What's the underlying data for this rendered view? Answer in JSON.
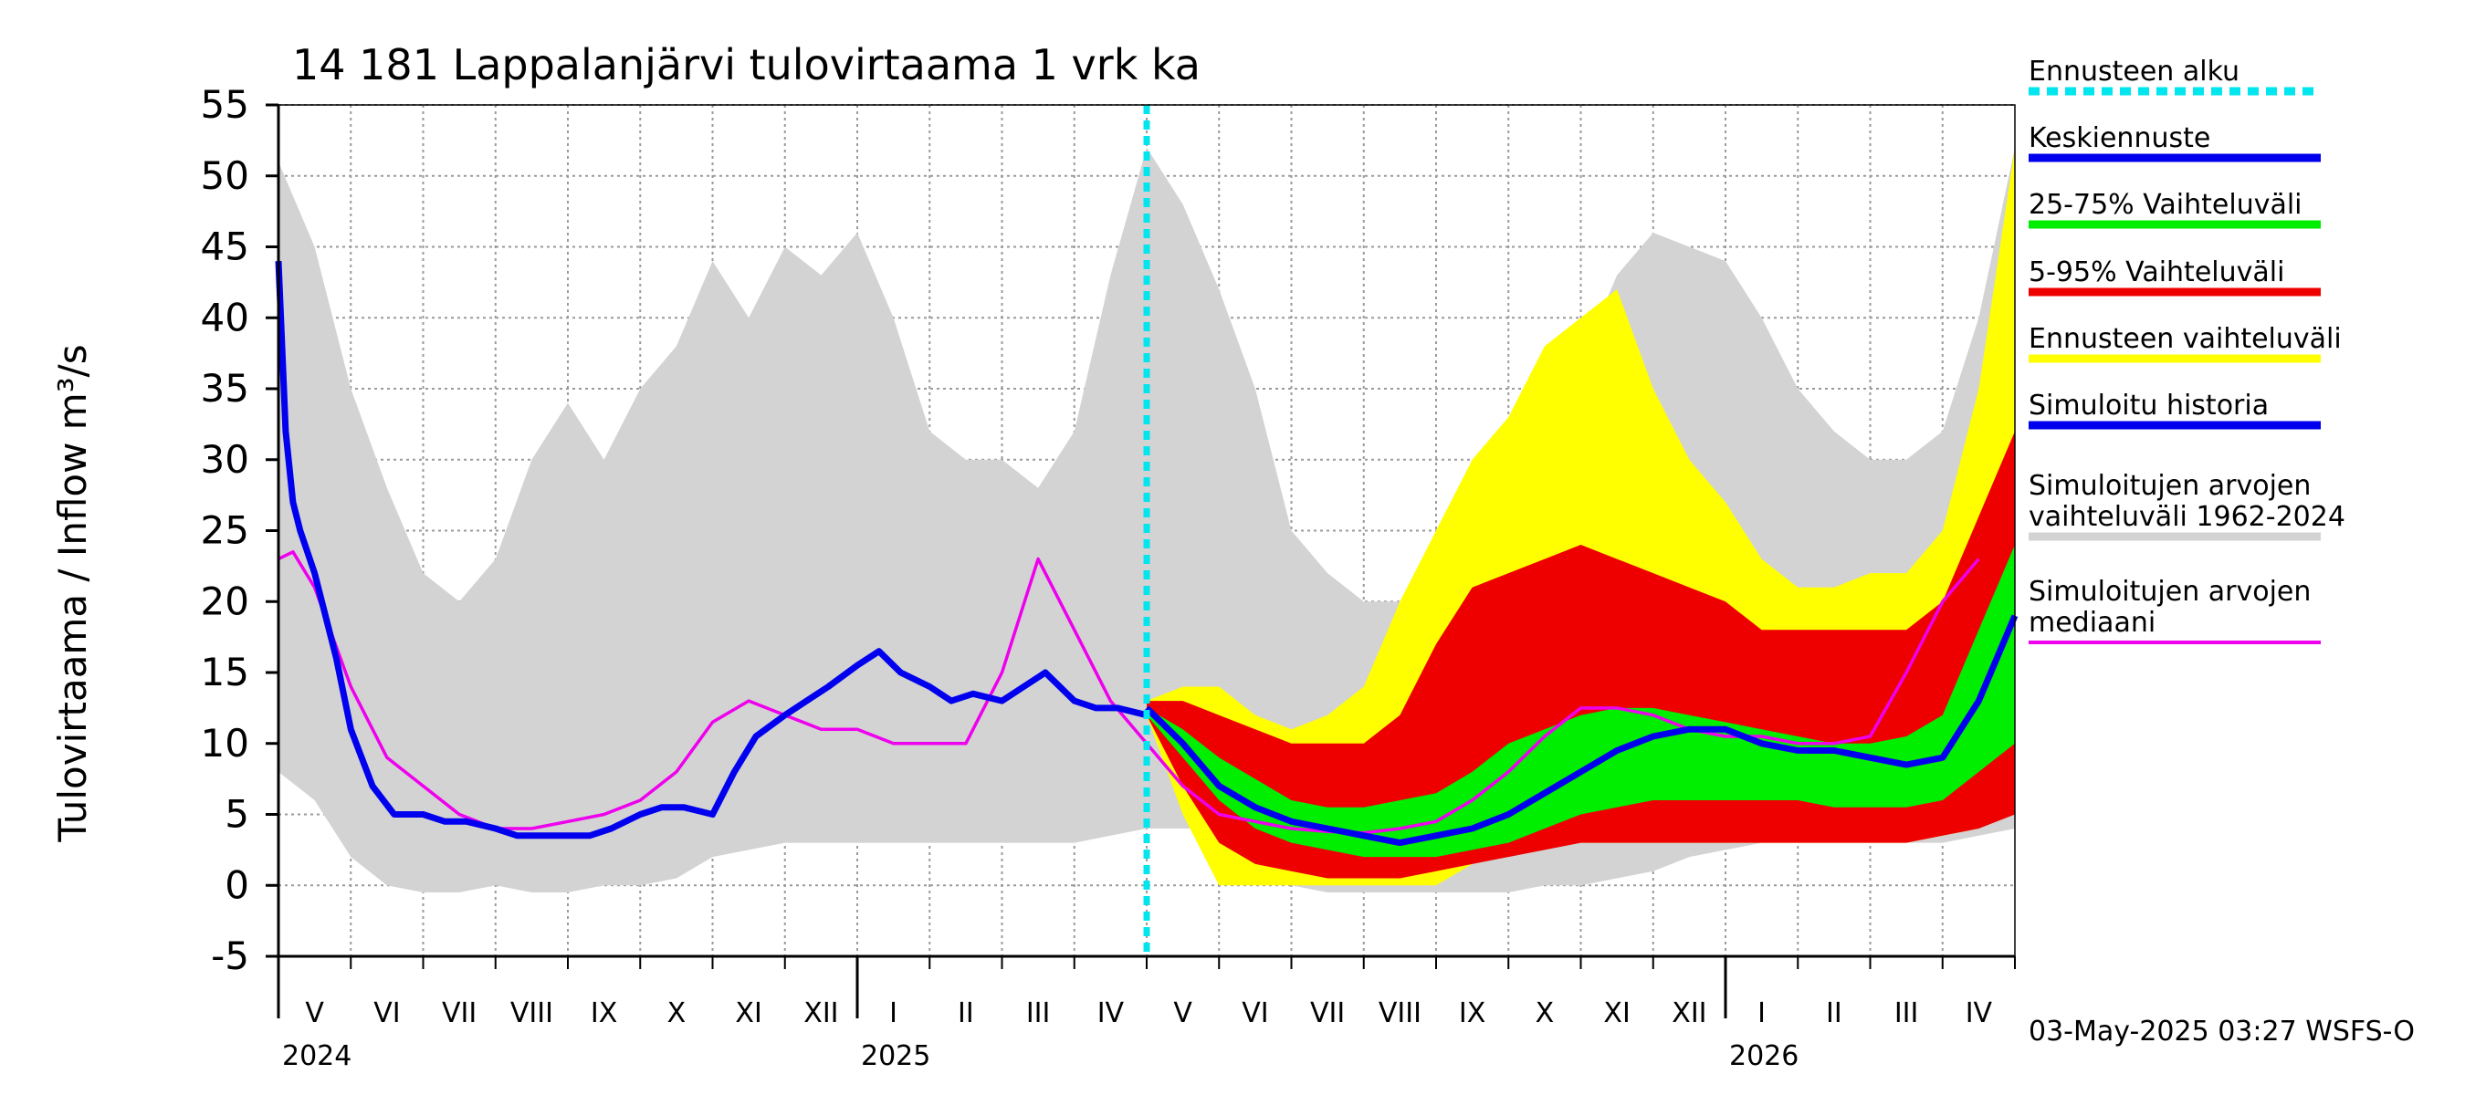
{
  "chart_data": {
    "type": "area",
    "title": "14 181 Lappalanjärvi tulovirtaama 1 vrk ka",
    "ylabel": "Tulovirtaama / Inflow    m³/s",
    "ylim": [
      -5,
      55
    ],
    "yticks": [
      -5,
      0,
      5,
      10,
      15,
      20,
      25,
      30,
      35,
      40,
      45,
      50,
      55
    ],
    "grid": true,
    "forecast_start": "2025-05-03",
    "month_labels": [
      "V",
      "VI",
      "VII",
      "VIII",
      "IX",
      "X",
      "XI",
      "XII",
      "I",
      "II",
      "III",
      "IV",
      "V",
      "VI",
      "VII",
      "VIII",
      "IX",
      "X",
      "XI",
      "XII",
      "I",
      "II",
      "III",
      "IV"
    ],
    "year_labels": [
      "2024",
      "2025",
      "2026"
    ],
    "legend": [
      {
        "label": "Ennusteen alku",
        "color": "#00e5ee",
        "style": "dashed"
      },
      {
        "label": "Keskiennuste",
        "color": "#0000ee",
        "style": "solid"
      },
      {
        "label": "25-75% Vaihteluväli",
        "color": "#00ee00",
        "style": "solid"
      },
      {
        "label": "5-95% Vaihteluväli",
        "color": "#ee0000",
        "style": "solid"
      },
      {
        "label": "Ennusteen vaihteluväli",
        "color": "#ffff00",
        "style": "solid"
      },
      {
        "label": "Simuloitu historia",
        "color": "#0000ee",
        "style": "solid"
      },
      {
        "label": "Simuloitujen arvojen",
        "label2": "vaihteluväli 1962-2024",
        "color": "#d3d3d3",
        "style": "solid"
      },
      {
        "label": "Simuloitujen arvojen",
        "label2": "mediaani",
        "color": "#ee00ee",
        "style": "solid"
      }
    ],
    "footer": "03-May-2025 03:27 WSFS-O",
    "series": {
      "hist_range_x": [
        0,
        0.5,
        1,
        1.5,
        2,
        2.5,
        3,
        3.5,
        4,
        4.5,
        5,
        5.5,
        6,
        6.5,
        7,
        7.5,
        8,
        8.5,
        9,
        9.5,
        10,
        10.5,
        11,
        11.5,
        12,
        12.5,
        13,
        13.5,
        14,
        14.5,
        15,
        15.5,
        16,
        16.5,
        17,
        17.5,
        18,
        18.5,
        19,
        19.5,
        20,
        20.5,
        21,
        21.5,
        22,
        22.5,
        23,
        23.5,
        24
      ],
      "hist_range_lo": [
        8,
        6,
        2,
        0,
        -0.5,
        -0.5,
        0,
        -0.5,
        -0.5,
        0,
        0,
        0.5,
        2,
        2.5,
        3,
        3,
        3,
        3,
        3,
        3,
        3,
        3,
        3,
        3.5,
        4,
        4,
        4,
        3,
        0,
        -0.5,
        -0.5,
        -0.5,
        -0.5,
        -0.5,
        -0.5,
        0,
        0,
        0.5,
        1,
        2,
        2.5,
        3,
        3,
        3,
        3,
        3,
        3,
        3.5,
        4
      ],
      "hist_range_hi": [
        51,
        45,
        35,
        28,
        22,
        20,
        23,
        30,
        34,
        30,
        35,
        38,
        44,
        40,
        45,
        43,
        46,
        40,
        32,
        30,
        30,
        28,
        32,
        43,
        52,
        48,
        42,
        35,
        25,
        22,
        20,
        20,
        22,
        23,
        28,
        32,
        37,
        43,
        46,
        45,
        44,
        40,
        35,
        32,
        30,
        30,
        32,
        40,
        52
      ],
      "median_x": [
        0,
        0.2,
        0.5,
        1,
        1.5,
        2,
        2.5,
        3,
        3.5,
        4,
        4.5,
        5,
        5.5,
        6,
        6.5,
        7,
        7.5,
        8,
        8.5,
        9,
        9.5,
        10,
        10.5,
        11,
        11.5,
        12,
        12.5,
        13,
        13.5,
        14,
        14.5,
        15,
        15.5,
        16,
        16.5,
        17,
        17.5,
        18,
        18.5,
        19,
        19.5,
        20,
        20.5,
        21,
        21.5,
        22,
        22.5,
        23,
        23.5,
        24
      ],
      "median_y": [
        23,
        23.5,
        21,
        14,
        9,
        7,
        5,
        4,
        4,
        4.5,
        5,
        6,
        8,
        11.5,
        13,
        12,
        11,
        11,
        10,
        10,
        10,
        15,
        23,
        18,
        13,
        10,
        7,
        5,
        4.5,
        4,
        3.8,
        3.7,
        4,
        4.5,
        6,
        8,
        10.5,
        12.5,
        12.5,
        12,
        11,
        10.5,
        10.5,
        10,
        10,
        10.5,
        15,
        20,
        23
      ],
      "sim_x": [
        0,
        0.1,
        0.2,
        0.3,
        0.5,
        0.8,
        1,
        1.3,
        1.6,
        2,
        2.3,
        2.6,
        3,
        3.3,
        3.6,
        4,
        4.3,
        4.6,
        5,
        5.3,
        5.6,
        6,
        6.3,
        6.6,
        7,
        7.3,
        7.6,
        8,
        8.3,
        8.6,
        9,
        9.3,
        9.6,
        10,
        10.3,
        10.6,
        11,
        11.3,
        11.6,
        12
      ],
      "sim_y": [
        44,
        32,
        27,
        25,
        22,
        16,
        11,
        7,
        5,
        5,
        4.5,
        4.5,
        4,
        3.5,
        3.5,
        3.5,
        3.5,
        4,
        5,
        5.5,
        5.5,
        5,
        8,
        10.5,
        12,
        13,
        14,
        15.5,
        16.5,
        15,
        14,
        13,
        13.5,
        13,
        14,
        15,
        13,
        12.5,
        12.5,
        12
      ],
      "fc_x": [
        12,
        12.5,
        13,
        13.5,
        14,
        14.5,
        15,
        15.5,
        16,
        16.5,
        17,
        17.5,
        18,
        18.5,
        19,
        19.5,
        20,
        20.5,
        21,
        21.5,
        22,
        22.5,
        23,
        23.5,
        24
      ],
      "fc_yellow_lo": [
        12,
        5,
        0,
        0,
        0,
        0,
        0,
        0,
        0,
        1.5,
        2.5,
        3,
        3,
        3,
        3,
        3,
        3,
        3,
        3,
        3,
        3,
        3,
        3.5,
        4,
        6
      ],
      "fc_yellow_hi": [
        13,
        14,
        14,
        12,
        11,
        12,
        14,
        20,
        25,
        30,
        33,
        38,
        40,
        42,
        35,
        30,
        27,
        23,
        21,
        21,
        22,
        22,
        25,
        35,
        52
      ],
      "fc_red_lo": [
        12,
        7,
        3,
        1.5,
        1,
        0.5,
        0.5,
        0.5,
        1,
        1.5,
        2,
        2.5,
        3,
        3,
        3,
        3,
        3,
        3,
        3,
        3,
        3,
        3,
        3.5,
        4,
        5
      ],
      "fc_red_hi": [
        13,
        13,
        12,
        11,
        10,
        10,
        10,
        12,
        17,
        21,
        22,
        23,
        24,
        23,
        22,
        21,
        20,
        18,
        18,
        18,
        18,
        18,
        20,
        26,
        32
      ],
      "fc_green_lo": [
        12,
        9,
        6,
        4,
        3,
        2.5,
        2,
        2,
        2,
        2.5,
        3,
        4,
        5,
        5.5,
        6,
        6,
        6,
        6,
        6,
        5.5,
        5.5,
        5.5,
        6,
        8,
        10
      ],
      "fc_green_hi": [
        12.5,
        11,
        9,
        7.5,
        6,
        5.5,
        5.5,
        6,
        6.5,
        8,
        10,
        11,
        12,
        12.5,
        12.5,
        12,
        11.5,
        11,
        10.5,
        10,
        10,
        10.5,
        12,
        18,
        24
      ],
      "fc_mean_y": [
        12.5,
        10,
        7,
        5.5,
        4.5,
        4,
        3.5,
        3,
        3.5,
        4,
        5,
        6.5,
        8,
        9.5,
        10.5,
        11,
        11,
        10,
        9.5,
        9.5,
        9,
        8.5,
        9,
        13,
        19
      ]
    }
  }
}
